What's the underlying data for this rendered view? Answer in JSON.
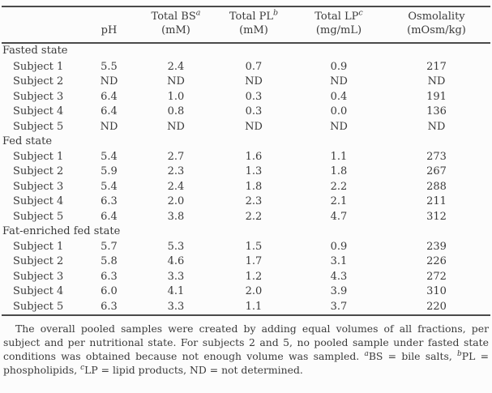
{
  "colors": {
    "text": "#3a3a3a",
    "rule": "#4a4a4a",
    "background": "#fcfcfc"
  },
  "table": {
    "columns": [
      {
        "top": "",
        "sup": "",
        "bottom": "pH"
      },
      {
        "top": "Total BS",
        "sup": "a",
        "bottom": "(mM)"
      },
      {
        "top": "Total PL",
        "sup": "b",
        "bottom": "(mM)"
      },
      {
        "top": "Total LP",
        "sup": "c",
        "bottom": "(mg/mL)"
      },
      {
        "top": "Osmolality",
        "sup": "",
        "bottom": "(mOsm/kg)"
      }
    ],
    "sections": [
      {
        "label": "Fasted state",
        "rows": [
          {
            "label": "Subject 1",
            "values": [
              "5.5",
              "2.4",
              "0.7",
              "0.9",
              "217"
            ]
          },
          {
            "label": "Subject 2",
            "values": [
              "ND",
              "ND",
              "ND",
              "ND",
              "ND"
            ]
          },
          {
            "label": "Subject 3",
            "values": [
              "6.4",
              "1.0",
              "0.3",
              "0.4",
              "191"
            ]
          },
          {
            "label": "Subject 4",
            "values": [
              "6.4",
              "0.8",
              "0.3",
              "0.0",
              "136"
            ]
          },
          {
            "label": "Subject 5",
            "values": [
              "ND",
              "ND",
              "ND",
              "ND",
              "ND"
            ]
          }
        ]
      },
      {
        "label": "Fed state",
        "rows": [
          {
            "label": "Subject 1",
            "values": [
              "5.4",
              "2.7",
              "1.6",
              "1.1",
              "273"
            ]
          },
          {
            "label": "Subject 2",
            "values": [
              "5.9",
              "2.3",
              "1.3",
              "1.8",
              "267"
            ]
          },
          {
            "label": "Subject 3",
            "values": [
              "5.4",
              "2.4",
              "1.8",
              "2.2",
              "288"
            ]
          },
          {
            "label": "Subject 4",
            "values": [
              "6.3",
              "2.0",
              "2.3",
              "2.1",
              "211"
            ]
          },
          {
            "label": "Subject 5",
            "values": [
              "6.4",
              "3.8",
              "2.2",
              "4.7",
              "312"
            ]
          }
        ]
      },
      {
        "label": "Fat-enriched fed state",
        "rows": [
          {
            "label": "Subject 1",
            "values": [
              "5.7",
              "5.3",
              "1.5",
              "0.9",
              "239"
            ]
          },
          {
            "label": "Subject 2",
            "values": [
              "5.8",
              "4.6",
              "1.7",
              "3.1",
              "226"
            ]
          },
          {
            "label": "Subject 3",
            "values": [
              "6.3",
              "3.3",
              "1.2",
              "4.3",
              "272"
            ]
          },
          {
            "label": "Subject 4",
            "values": [
              "6.0",
              "4.1",
              "2.0",
              "3.9",
              "310"
            ]
          },
          {
            "label": "Subject 5",
            "values": [
              "6.3",
              "3.3",
              "1.1",
              "3.7",
              "220"
            ]
          }
        ]
      }
    ]
  },
  "footnote": {
    "text1": "The overall pooled samples were created by adding equal volumes of all fractions, per subject and per nutritional state. For subjects 2 and 5, no pooled sample under fasted state conditions was obtained because not enough volume was sampled. ",
    "sup_a": "a",
    "text2": "BS = bile salts, ",
    "sup_b": "b",
    "text3": "PL = phospholipids, ",
    "sup_c": "c",
    "text4": "LP = lipid products, ND = not determined."
  }
}
